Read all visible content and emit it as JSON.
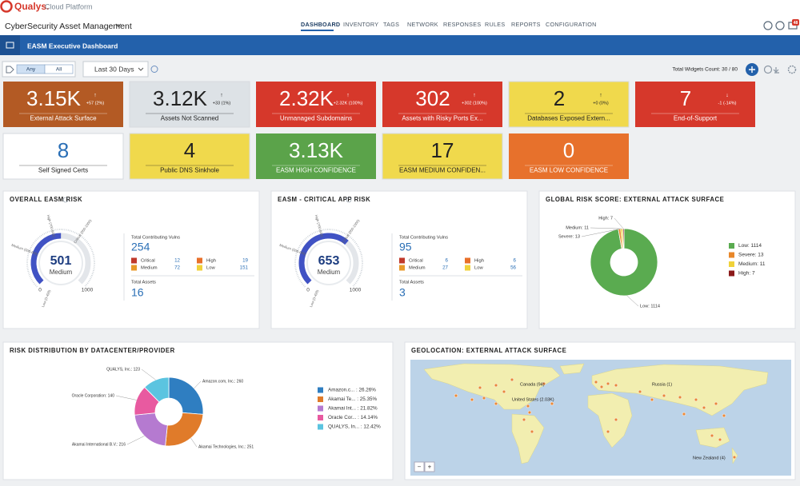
{
  "header": {
    "brand": "Qualys.",
    "platform": "Cloud Platform",
    "app": "CyberSecurity Asset Management",
    "nav": [
      "DASHBOARD",
      "INVENTORY",
      "TAGS",
      "NETWORK",
      "RESPONSES",
      "RULES",
      "REPORTS",
      "CONFIGURATION"
    ],
    "active_tab": 0,
    "badge": "48"
  },
  "dashboard": {
    "title": "EASM Executive Dashboard",
    "filter": {
      "options": [
        "Any",
        "All"
      ],
      "selected": 0
    },
    "range": "Last 30 Days",
    "widgets_count": "Total Widgets Count: 30 / 80"
  },
  "tiles": [
    {
      "value": "3.15K",
      "arrow": "↑",
      "change": "+57 (2%)",
      "label": "External Attack Surface",
      "color": "#b35a24"
    },
    {
      "value": "3.12K",
      "arrow": "↑",
      "change": "+33 (1%)",
      "label": "Assets Not Scanned",
      "color": "#dde2e6"
    },
    {
      "value": "2.32K",
      "arrow": "↑",
      "change": "+2.32K (100%)",
      "label": "Unmanaged Subdomains",
      "color": "#d6382b"
    },
    {
      "value": "302",
      "arrow": "↑",
      "change": "+302 (100%)",
      "label": "Assets with Risky Ports Ex...",
      "color": "#d6382b"
    },
    {
      "value": "2",
      "arrow": "↑",
      "change": "+0 (0%)",
      "label": "Databases Exposed Extern...",
      "color": "#f0d94c"
    },
    {
      "value": "7",
      "arrow": "↓",
      "change": "-1 (-14%)",
      "label": "End-of-Support",
      "color": "#d6382b"
    },
    {
      "value": "8",
      "label": "Self Signed Certs",
      "color": "#ffffff"
    },
    {
      "value": "4",
      "label": "Public DNS Sinkhole",
      "color": "#f0d94c"
    },
    {
      "value": "3.13K",
      "label": "EASM HIGH CONFIDENCE",
      "color": "#5ba34a"
    },
    {
      "value": "17",
      "label": "EASM MEDIUM CONFIDEN...",
      "color": "#f0d94c"
    },
    {
      "value": "0",
      "label": "EASM LOW CONFIDENCE",
      "color": "#e7712c"
    }
  ],
  "gauges": [
    {
      "title": "OVERALL EASM RISK",
      "score": 501,
      "rating": "Medium",
      "min": 0,
      "max": 1000,
      "bands": [
        "Low (0-499)",
        "Medium (500-699)",
        "High (700-849)",
        "Critical (850-1000)"
      ],
      "vulns_label": "Total Contributing Vulns",
      "vulns": 254,
      "severities": [
        {
          "name": "Critical",
          "count": 12,
          "color": "#c0392b"
        },
        {
          "name": "High",
          "count": 19,
          "color": "#e8702a"
        },
        {
          "name": "Medium",
          "count": 72,
          "color": "#e89a2a"
        },
        {
          "name": "Low",
          "count": 151,
          "color": "#f0d23a"
        }
      ],
      "assets_label": "Total Assets",
      "assets": 16
    },
    {
      "title": "EASM - CRITICAL APP RISK",
      "score": 653,
      "rating": "Medium",
      "min": 0,
      "max": 1000,
      "bands": [
        "Low (0-499)",
        "Medium (500-699)",
        "High (700-849)",
        "Critical (850-1000)"
      ],
      "vulns_label": "Total Contributing Vulns",
      "vulns": 95,
      "severities": [
        {
          "name": "Critical",
          "count": 6,
          "color": "#c0392b"
        },
        {
          "name": "High",
          "count": 6,
          "color": "#e8702a"
        },
        {
          "name": "Medium",
          "count": 27,
          "color": "#e89a2a"
        },
        {
          "name": "Low",
          "count": 56,
          "color": "#f0d23a"
        }
      ],
      "assets_label": "Total Assets",
      "assets": 3
    }
  ],
  "global_risk": {
    "title": "GLOBAL RISK SCORE: EXTERNAL ATTACK SURFACE",
    "slices": [
      {
        "label": "Low: 1114",
        "value": 1114,
        "color": "#5aab50"
      },
      {
        "label": "Severe: 13",
        "value": 13,
        "color": "#e8872a"
      },
      {
        "label": "Medium: 11",
        "value": 11,
        "color": "#f0d23a"
      },
      {
        "label": "High: 7",
        "value": 7,
        "color": "#8b1a1a"
      }
    ]
  },
  "distribution": {
    "title": "RISK DISTRIBUTION BY DATACENTER/PROVIDER",
    "slices": [
      {
        "label": "Amazon.com, Inc.: 260",
        "value": 260,
        "legend": "Amazon.c... : 26.26%",
        "color": "#2f7ec1"
      },
      {
        "label": "Akamai Technologies, Inc.: 251",
        "value": 251,
        "legend": "Akamai Te... : 25.35%",
        "color": "#e07b2a"
      },
      {
        "label": "Akamai International B.V.: 216",
        "value": 216,
        "legend": "Akamai Int... : 21.82%",
        "color": "#b57ad0"
      },
      {
        "label": "Oracle Corporation: 140",
        "value": 140,
        "legend": "Oracle Cor... : 14.14%",
        "color": "#e85aa0"
      },
      {
        "label": "QUALYS, Inc.: 123",
        "value": 123,
        "legend": "QUALYS, In... : 12.42%",
        "color": "#5bc4e0"
      }
    ]
  },
  "geolocation": {
    "title": "GEOLOCATION: EXTERNAL ATTACK SURFACE",
    "labels": [
      "Canada (94)",
      "United States (2.03K)",
      "Russia (1)",
      "New Zealand (4)"
    ],
    "zoom": [
      "−",
      "+"
    ]
  }
}
